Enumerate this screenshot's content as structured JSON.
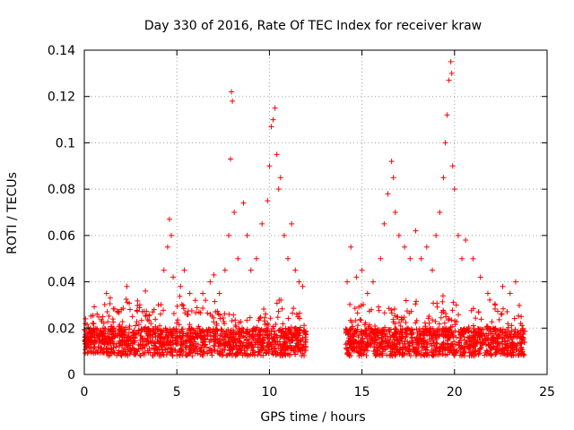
{
  "chart_data": {
    "type": "scatter",
    "title": "Day 330 of 2016, Rate Of TEC Index for receiver kraw",
    "xlabel": "GPS time / hours",
    "ylabel": "ROTI / TECUs",
    "xlim": [
      0,
      25
    ],
    "ylim": [
      0,
      0.14
    ],
    "xticks": [
      0,
      5,
      10,
      15,
      20,
      25
    ],
    "yticks": [
      0,
      0.02,
      0.04,
      0.06,
      0.08,
      0.1,
      0.12,
      0.14
    ],
    "xtick_labels": [
      "0",
      "5",
      "10",
      "15",
      "20",
      "25"
    ],
    "ytick_labels": [
      "0",
      "0.02",
      "0.04",
      "0.06",
      "0.08",
      "0.1",
      "0.12",
      "0.14"
    ],
    "grid": true,
    "marker": "+",
    "color": "#ff0000",
    "data_gap_hours": [
      12.0,
      14.1
    ],
    "series": [
      {
        "points": [
          [
            0.1,
            0.012
          ],
          [
            0.3,
            0.018
          ],
          [
            0.5,
            0.022
          ],
          [
            0.8,
            0.015
          ],
          [
            1.0,
            0.025
          ],
          [
            1.2,
            0.035
          ],
          [
            1.4,
            0.033
          ],
          [
            1.6,
            0.02
          ],
          [
            2.0,
            0.028
          ],
          [
            2.3,
            0.038
          ],
          [
            2.6,
            0.025
          ],
          [
            3.0,
            0.03
          ],
          [
            3.3,
            0.036
          ],
          [
            3.6,
            0.022
          ],
          [
            4.0,
            0.03
          ],
          [
            4.3,
            0.045
          ],
          [
            4.5,
            0.055
          ],
          [
            4.6,
            0.067
          ],
          [
            4.7,
            0.06
          ],
          [
            4.8,
            0.042
          ],
          [
            5.2,
            0.038
          ],
          [
            5.4,
            0.045
          ],
          [
            5.7,
            0.035
          ],
          [
            6.0,
            0.032
          ],
          [
            6.4,
            0.035
          ],
          [
            6.8,
            0.04
          ],
          [
            7.0,
            0.043
          ],
          [
            7.3,
            0.035
          ],
          [
            7.6,
            0.045
          ],
          [
            7.8,
            0.06
          ],
          [
            7.9,
            0.093
          ],
          [
            8.0,
            0.118
          ],
          [
            7.95,
            0.122
          ],
          [
            8.1,
            0.07
          ],
          [
            8.3,
            0.05
          ],
          [
            8.6,
            0.074
          ],
          [
            8.8,
            0.06
          ],
          [
            9.0,
            0.045
          ],
          [
            9.3,
            0.05
          ],
          [
            9.6,
            0.065
          ],
          [
            9.9,
            0.075
          ],
          [
            10.0,
            0.09
          ],
          [
            10.1,
            0.107
          ],
          [
            10.2,
            0.11
          ],
          [
            10.3,
            0.115
          ],
          [
            10.4,
            0.095
          ],
          [
            10.5,
            0.08
          ],
          [
            10.6,
            0.085
          ],
          [
            10.8,
            0.06
          ],
          [
            11.0,
            0.05
          ],
          [
            11.2,
            0.065
          ],
          [
            11.4,
            0.045
          ],
          [
            11.6,
            0.04
          ],
          [
            11.8,
            0.038
          ],
          [
            14.2,
            0.04
          ],
          [
            14.4,
            0.055
          ],
          [
            14.7,
            0.042
          ],
          [
            15.0,
            0.045
          ],
          [
            15.3,
            0.035
          ],
          [
            15.6,
            0.04
          ],
          [
            16.0,
            0.05
          ],
          [
            16.2,
            0.065
          ],
          [
            16.4,
            0.078
          ],
          [
            16.6,
            0.092
          ],
          [
            16.7,
            0.085
          ],
          [
            16.8,
            0.07
          ],
          [
            17.0,
            0.06
          ],
          [
            17.3,
            0.055
          ],
          [
            17.6,
            0.05
          ],
          [
            17.9,
            0.062
          ],
          [
            18.2,
            0.05
          ],
          [
            18.5,
            0.055
          ],
          [
            18.8,
            0.045
          ],
          [
            19.0,
            0.06
          ],
          [
            19.2,
            0.07
          ],
          [
            19.4,
            0.085
          ],
          [
            19.5,
            0.1
          ],
          [
            19.6,
            0.112
          ],
          [
            19.7,
            0.127
          ],
          [
            19.8,
            0.135
          ],
          [
            19.85,
            0.13
          ],
          [
            19.9,
            0.09
          ],
          [
            20.0,
            0.08
          ],
          [
            20.2,
            0.06
          ],
          [
            20.4,
            0.05
          ],
          [
            20.6,
            0.058
          ],
          [
            21.0,
            0.05
          ],
          [
            21.4,
            0.042
          ],
          [
            21.8,
            0.035
          ],
          [
            22.2,
            0.03
          ],
          [
            22.6,
            0.038
          ],
          [
            23.0,
            0.035
          ],
          [
            23.3,
            0.04
          ],
          [
            23.6,
            0.025
          ]
        ]
      }
    ]
  }
}
